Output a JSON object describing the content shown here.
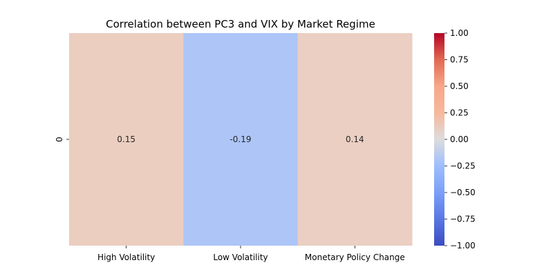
{
  "chart_data": {
    "type": "heatmap",
    "title": "Correlation between PC3 and VIX by Market Regime",
    "xlabel": "",
    "ylabel": "",
    "columns": [
      "High Volatility",
      "Low Volatility",
      "Monetary Policy Change"
    ],
    "rows": [
      "0"
    ],
    "values": [
      [
        0.15,
        -0.19,
        0.14
      ]
    ],
    "value_labels": [
      [
        "0.15",
        "-0.19",
        "0.14"
      ]
    ],
    "vmin": -1.0,
    "vmax": 1.0,
    "colormap": "coolwarm",
    "colorbar_ticks": [
      1.0,
      0.75,
      0.5,
      0.25,
      0.0,
      -0.25,
      -0.5,
      -0.75,
      -1.0
    ],
    "colorbar_tick_labels": [
      "1.00",
      "0.75",
      "0.50",
      "0.25",
      "0.00",
      "−0.25",
      "−0.50",
      "−0.75",
      "−1.00"
    ],
    "grid": false
  }
}
